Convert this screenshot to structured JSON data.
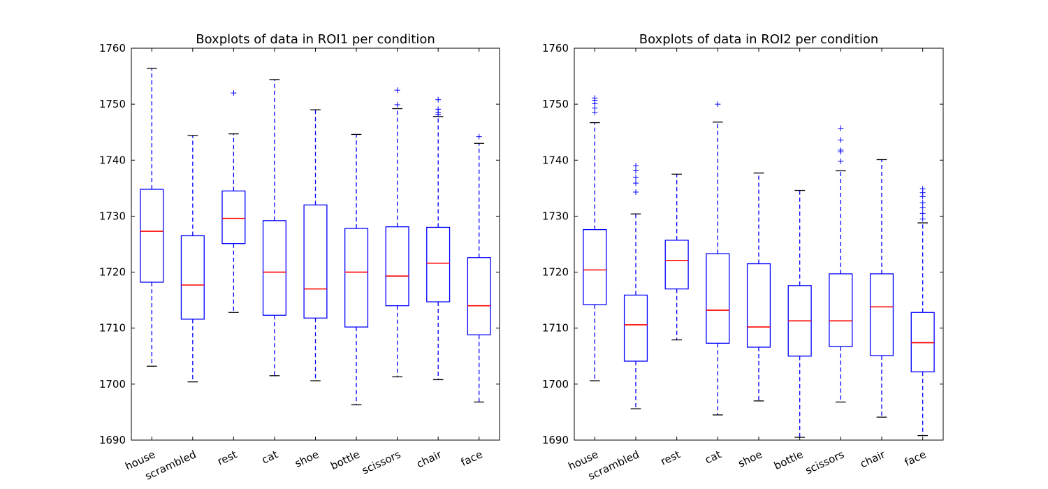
{
  "chart_data": [
    {
      "type": "box",
      "title": "Boxplots of data in ROI1 per condition",
      "xlabel": "",
      "ylabel": "",
      "ylim": [
        1690,
        1760
      ],
      "yticks": [
        1690,
        1700,
        1710,
        1720,
        1730,
        1740,
        1750,
        1760
      ],
      "categories": [
        "house",
        "scrambled",
        "rest",
        "cat",
        "shoe",
        "bottle",
        "scissors",
        "chair",
        "face"
      ],
      "boxes": [
        {
          "whislo": 1703.2,
          "q1": 1718.2,
          "med": 1727.3,
          "q3": 1734.8,
          "whishi": 1756.4,
          "fliers": []
        },
        {
          "whislo": 1700.4,
          "q1": 1711.6,
          "med": 1717.7,
          "q3": 1726.5,
          "whishi": 1744.4,
          "fliers": []
        },
        {
          "whislo": 1712.8,
          "q1": 1725.1,
          "med": 1729.6,
          "q3": 1734.5,
          "whishi": 1744.7,
          "fliers": [
            1752.0
          ]
        },
        {
          "whislo": 1701.5,
          "q1": 1712.3,
          "med": 1720.0,
          "q3": 1729.2,
          "whishi": 1754.4,
          "fliers": []
        },
        {
          "whislo": 1700.6,
          "q1": 1711.8,
          "med": 1717.0,
          "q3": 1732.0,
          "whishi": 1749.0,
          "fliers": []
        },
        {
          "whislo": 1696.3,
          "q1": 1710.2,
          "med": 1720.0,
          "q3": 1727.8,
          "whishi": 1744.6,
          "fliers": []
        },
        {
          "whislo": 1701.3,
          "q1": 1714.0,
          "med": 1719.3,
          "q3": 1728.1,
          "whishi": 1749.2,
          "fliers": [
            1749.9,
            1752.5
          ]
        },
        {
          "whislo": 1700.8,
          "q1": 1714.7,
          "med": 1721.6,
          "q3": 1728.0,
          "whishi": 1747.8,
          "fliers": [
            1748.2,
            1748.5,
            1749.1,
            1750.8
          ]
        },
        {
          "whislo": 1696.8,
          "q1": 1708.8,
          "med": 1714.0,
          "q3": 1722.6,
          "whishi": 1743.0,
          "fliers": [
            1744.2
          ]
        }
      ]
    },
    {
      "type": "box",
      "title": "Boxplots of data in ROI2 per condition",
      "xlabel": "",
      "ylabel": "",
      "ylim": [
        1690,
        1760
      ],
      "yticks": [
        1690,
        1700,
        1710,
        1720,
        1730,
        1740,
        1750,
        1760
      ],
      "categories": [
        "house",
        "scrambled",
        "rest",
        "cat",
        "shoe",
        "bottle",
        "scissors",
        "chair",
        "face"
      ],
      "boxes": [
        {
          "whislo": 1700.6,
          "q1": 1714.2,
          "med": 1720.4,
          "q3": 1727.6,
          "whishi": 1746.7,
          "fliers": [
            1748.5,
            1749.3,
            1750.1,
            1750.7,
            1751.1
          ]
        },
        {
          "whislo": 1695.6,
          "q1": 1704.1,
          "med": 1710.6,
          "q3": 1715.9,
          "whishi": 1730.4,
          "fliers": [
            1734.3,
            1735.9,
            1736.9,
            1738.1,
            1739.0
          ]
        },
        {
          "whislo": 1707.9,
          "q1": 1717.0,
          "med": 1722.1,
          "q3": 1725.7,
          "whishi": 1737.5,
          "fliers": []
        },
        {
          "whislo": 1694.5,
          "q1": 1707.3,
          "med": 1713.2,
          "q3": 1723.3,
          "whishi": 1746.8,
          "fliers": [
            1750.0
          ]
        },
        {
          "whislo": 1697.0,
          "q1": 1706.6,
          "med": 1710.2,
          "q3": 1721.5,
          "whishi": 1737.7,
          "fliers": []
        },
        {
          "whislo": 1690.5,
          "q1": 1705.0,
          "med": 1711.3,
          "q3": 1717.6,
          "whishi": 1734.6,
          "fliers": []
        },
        {
          "whislo": 1696.8,
          "q1": 1706.7,
          "med": 1711.3,
          "q3": 1719.7,
          "whishi": 1738.1,
          "fliers": [
            1739.8,
            1741.5,
            1741.8,
            1743.6,
            1745.7
          ]
        },
        {
          "whislo": 1694.1,
          "q1": 1705.1,
          "med": 1713.8,
          "q3": 1719.7,
          "whishi": 1740.1,
          "fliers": []
        },
        {
          "whislo": 1690.8,
          "q1": 1702.2,
          "med": 1707.4,
          "q3": 1712.8,
          "whishi": 1728.8,
          "fliers": [
            1729.5,
            1730.5,
            1731.5,
            1732.4,
            1733.5,
            1734.2,
            1734.9
          ]
        }
      ]
    }
  ]
}
